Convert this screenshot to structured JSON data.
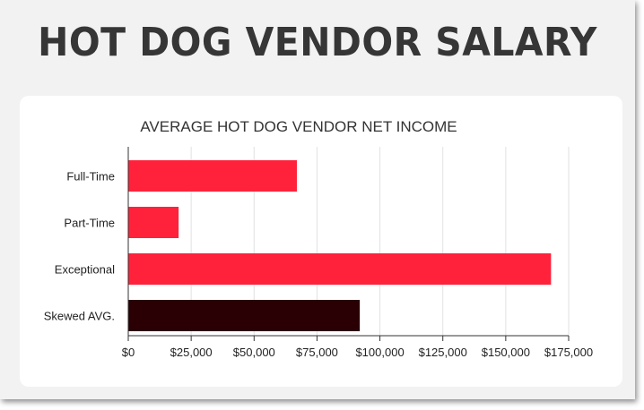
{
  "page": {
    "headline": "HOT DOG VENDOR SALARY"
  },
  "chart_data": {
    "type": "bar",
    "orientation": "horizontal",
    "title": "AVERAGE HOT DOG VENDOR NET INCOME",
    "xlabel": "",
    "ylabel": "",
    "categories": [
      "Full-Time",
      "Part-Time",
      "Exceptional",
      "Skewed AVG."
    ],
    "values": [
      67000,
      20000,
      168000,
      92000
    ],
    "bar_colors": [
      "#ff223a",
      "#ff223a",
      "#ff223a",
      "#2a0005"
    ],
    "xlim": [
      0,
      175000
    ],
    "x_ticks": [
      0,
      25000,
      50000,
      75000,
      100000,
      125000,
      150000,
      175000
    ],
    "x_tick_labels": [
      "$0",
      "$25,000",
      "$50,000",
      "$75,000",
      "$100,000",
      "$125,000",
      "$150,000",
      "$175,000"
    ],
    "grid": true,
    "legend": "none"
  }
}
